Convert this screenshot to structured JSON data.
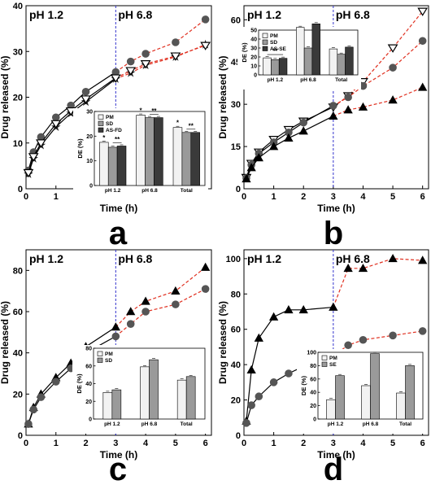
{
  "colors": {
    "line_black": "#000000",
    "line_red": "#e03020",
    "divider": "#3333cc",
    "marker_grey": "#555555",
    "bar_light": "#f2f2f2",
    "bar_mid": "#9a9a9a",
    "bar_dark": "#3a3a3a"
  },
  "chart_data": [
    {
      "panel_letter": "a",
      "type": "line",
      "xlabel": "Time (h)",
      "ylabel": "Drug released (%)",
      "xlim": [
        0,
        6.2
      ],
      "ylim": [
        0,
        40
      ],
      "xticks": [
        0,
        1,
        2,
        3,
        4,
        5,
        6
      ],
      "yticks": [
        0,
        10,
        20,
        30,
        40
      ],
      "phase_labels": [
        "pH 1.2",
        "pH 6.8"
      ],
      "divider_x": 3,
      "series": [
        {
          "marker": "circle",
          "style": "solid-then-dashed",
          "x": [
            0.08,
            0.25,
            0.5,
            1,
            1.5,
            2,
            3,
            3.5,
            4,
            5,
            6
          ],
          "y": [
            4,
            8,
            11.3,
            15.6,
            18.2,
            21.2,
            25.5,
            27.8,
            29.5,
            32,
            37
          ]
        },
        {
          "marker": "star",
          "style": "solid-then-dashed",
          "x": [
            0.08,
            0.25,
            0.5,
            1,
            1.5,
            2,
            3,
            3.5,
            4,
            5,
            6
          ],
          "y": [
            3.2,
            6.6,
            9.5,
            13.5,
            16.5,
            19,
            24,
            25.3,
            27,
            28.8,
            31.5
          ]
        },
        {
          "marker": "triangle-down-open",
          "style": "solid-then-dashed",
          "x": [
            0.08,
            0.25,
            0.5,
            1,
            1.5,
            2,
            3,
            3.5,
            4,
            5,
            6
          ],
          "y": [
            3.5,
            7,
            10,
            14.2,
            17,
            19.6,
            24.2,
            25.8,
            27.3,
            29,
            31.3
          ]
        }
      ],
      "inset": {
        "ylabel": "DE (%)",
        "ylim": [
          0,
          30
        ],
        "yticks": [
          0,
          10,
          20,
          30
        ],
        "groups": [
          "pH 1.2",
          "pH 6.8",
          "Total"
        ],
        "legend": [
          "PM",
          "SD",
          "AS-FD"
        ],
        "values": [
          [
            17.5,
            28.5,
            23.5
          ],
          [
            15.5,
            27.5,
            21.5
          ],
          [
            16,
            27.5,
            21.5
          ]
        ],
        "stars": [
          "*",
          "**",
          "*",
          "**",
          "*",
          "**"
        ]
      }
    },
    {
      "panel_letter": "b",
      "type": "line",
      "xlabel": "Time (h)",
      "ylabel": "Drug released (%)",
      "xlim": [
        0,
        6.2
      ],
      "ylim": [
        0,
        65
      ],
      "xticks": [
        0,
        1,
        2,
        3,
        4,
        5,
        6
      ],
      "yticks": [
        0,
        15,
        30,
        45,
        60
      ],
      "phase_labels": [
        "pH 1.2",
        "pH 6.8"
      ],
      "divider_x": 3,
      "series": [
        {
          "marker": "triangle-down-open",
          "style": "solid-then-dashed",
          "x": [
            0.08,
            0.25,
            0.5,
            1,
            1.5,
            2,
            3,
            3.5,
            4,
            5,
            6
          ],
          "y": [
            4,
            9,
            13,
            17.5,
            21,
            24,
            29,
            33,
            38,
            50,
            63
          ]
        },
        {
          "marker": "circle",
          "style": "solid-then-dashed",
          "x": [
            0.08,
            0.25,
            0.5,
            1,
            1.5,
            2,
            3,
            3.5,
            4,
            5,
            6
          ],
          "y": [
            3.8,
            8.5,
            12.5,
            16.5,
            20,
            23.5,
            29.5,
            32.5,
            36.5,
            43,
            52.5
          ]
        },
        {
          "marker": "triangle",
          "style": "solid-then-dashed",
          "x": [
            0.08,
            0.25,
            0.5,
            1,
            1.5,
            2,
            3,
            3.5,
            4,
            5,
            6
          ],
          "y": [
            3.5,
            7.5,
            11,
            15,
            18,
            20.5,
            25.8,
            28,
            29,
            31.5,
            36
          ]
        }
      ],
      "inset": {
        "ylabel": "DE (%)",
        "ylim": [
          0,
          50
        ],
        "yticks": [
          0,
          10,
          20,
          30,
          40,
          50
        ],
        "groups": [
          "pH 1.2",
          "pH 6.8",
          "Total"
        ],
        "legend": [
          "PM",
          "SD",
          "AS-SE"
        ],
        "values": [
          [
            19,
            53,
            29
          ],
          [
            17,
            30,
            23
          ],
          [
            18.5,
            57,
            31
          ]
        ],
        "stars": [
          "**"
        ]
      }
    },
    {
      "panel_letter": "c",
      "type": "line",
      "xlabel": "Time (h)",
      "ylabel": "Drug released (%)",
      "xlim": [
        0,
        6.2
      ],
      "ylim": [
        0,
        90
      ],
      "xticks": [
        0,
        1,
        2,
        3,
        4,
        5,
        6
      ],
      "yticks": [
        0,
        20,
        40,
        60,
        80
      ],
      "phase_labels": [
        "pH 1.2",
        "pH 6.8"
      ],
      "divider_x": 3,
      "series": [
        {
          "marker": "triangle",
          "style": "solid-then-dashed",
          "x": [
            0.08,
            0.25,
            0.5,
            1,
            1.5,
            2,
            3,
            3.5,
            4,
            5,
            6
          ],
          "y": [
            5.5,
            13.5,
            20,
            28,
            35,
            43,
            52.5,
            60,
            65,
            70,
            81.5
          ]
        },
        {
          "marker": "circle",
          "style": "solid-then-dashed",
          "x": [
            0.08,
            0.25,
            0.5,
            1,
            1.5,
            2,
            3,
            3.5,
            4,
            5,
            6
          ],
          "y": [
            5.5,
            12.5,
            18.5,
            26,
            32.5,
            40,
            48,
            54,
            60,
            63.5,
            71
          ]
        }
      ],
      "inset": {
        "ylabel": "DE (%)",
        "ylim": [
          0,
          80
        ],
        "yticks": [
          0,
          20,
          40,
          60,
          80
        ],
        "groups": [
          "pH 1.2",
          "pH 6.8",
          "Total"
        ],
        "legend": [
          "PM",
          "SD"
        ],
        "values": [
          [
            30,
            59,
            44
          ],
          [
            33,
            67,
            48
          ]
        ],
        "stars": []
      }
    },
    {
      "panel_letter": "d",
      "type": "line",
      "xlabel": "Time (h)",
      "ylabel": "Drug released (%)",
      "xlim": [
        0,
        6.2
      ],
      "ylim": [
        0,
        105
      ],
      "xticks": [
        0,
        1,
        2,
        3,
        4,
        5,
        6
      ],
      "yticks": [
        0,
        20,
        40,
        60,
        80,
        100
      ],
      "phase_labels": [
        "pH 1.2",
        "pH 6.8"
      ],
      "divider_x": 3,
      "series": [
        {
          "marker": "triangle",
          "style": "solid-then-dashed",
          "x": [
            0.08,
            0.25,
            0.5,
            1,
            1.5,
            2,
            3,
            3.5,
            4,
            5,
            6
          ],
          "y": [
            8,
            37,
            55,
            67,
            71,
            71,
            72.5,
            94.5,
            94.5,
            100,
            99
          ]
        },
        {
          "marker": "circle",
          "style": "solid-then-dashed",
          "x": [
            0.08,
            0.25,
            0.5,
            1,
            1.5,
            2,
            3,
            3.5,
            4,
            5,
            6
          ],
          "y": [
            7,
            17,
            22,
            30,
            35,
            39,
            45,
            51,
            54,
            56.5,
            59
          ]
        }
      ],
      "inset": {
        "ylabel": "DE (%)",
        "ylim": [
          0,
          100
        ],
        "yticks": [
          0,
          20,
          40,
          60,
          80,
          100
        ],
        "groups": [
          "pH 1.2",
          "pH 6.8",
          "Total"
        ],
        "legend": [
          "PM",
          "SE"
        ],
        "values": [
          [
            29,
            50,
            39
          ],
          [
            65,
            98,
            80
          ]
        ],
        "stars": []
      }
    }
  ]
}
